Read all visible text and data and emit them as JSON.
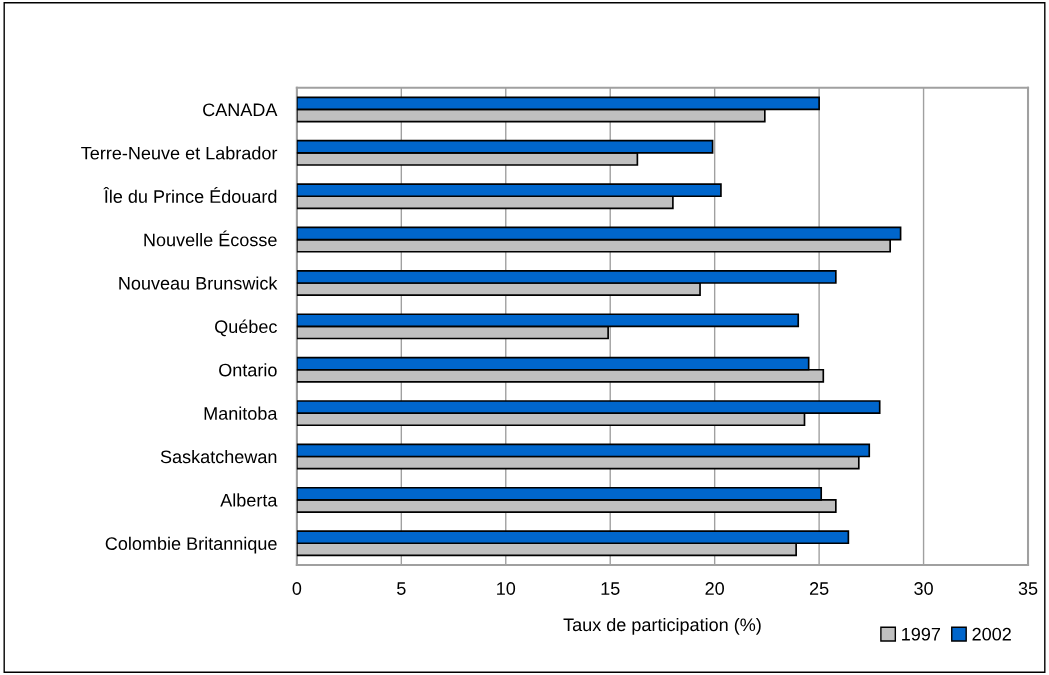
{
  "chart_data": {
    "type": "bar",
    "orientation": "horizontal",
    "xlabel": "Taux de participation (%)",
    "categories": [
      "CANADA",
      "Terre-Neuve et Labrador",
      "Île du Prince Édouard",
      "Nouvelle Écosse",
      "Nouveau Brunswick",
      "Québec",
      "Ontario",
      "Manitoba",
      "Saskatchewan",
      "Alberta",
      "Colombie Britannique"
    ],
    "series": [
      {
        "name": "1997",
        "color": "#c0c0c0",
        "values": [
          22.4,
          16.3,
          18.0,
          28.4,
          19.3,
          14.9,
          25.2,
          24.3,
          26.9,
          25.8,
          23.9
        ]
      },
      {
        "name": "2002",
        "color": "#0066cc",
        "values": [
          25.0,
          19.9,
          20.3,
          28.9,
          25.8,
          24.0,
          24.5,
          27.9,
          27.4,
          25.1,
          26.4
        ]
      }
    ],
    "xlim": [
      0,
      35
    ],
    "xticks": [
      0,
      5,
      10,
      15,
      20,
      25,
      30,
      35
    ],
    "grid": "x",
    "legend": "bottom right"
  }
}
